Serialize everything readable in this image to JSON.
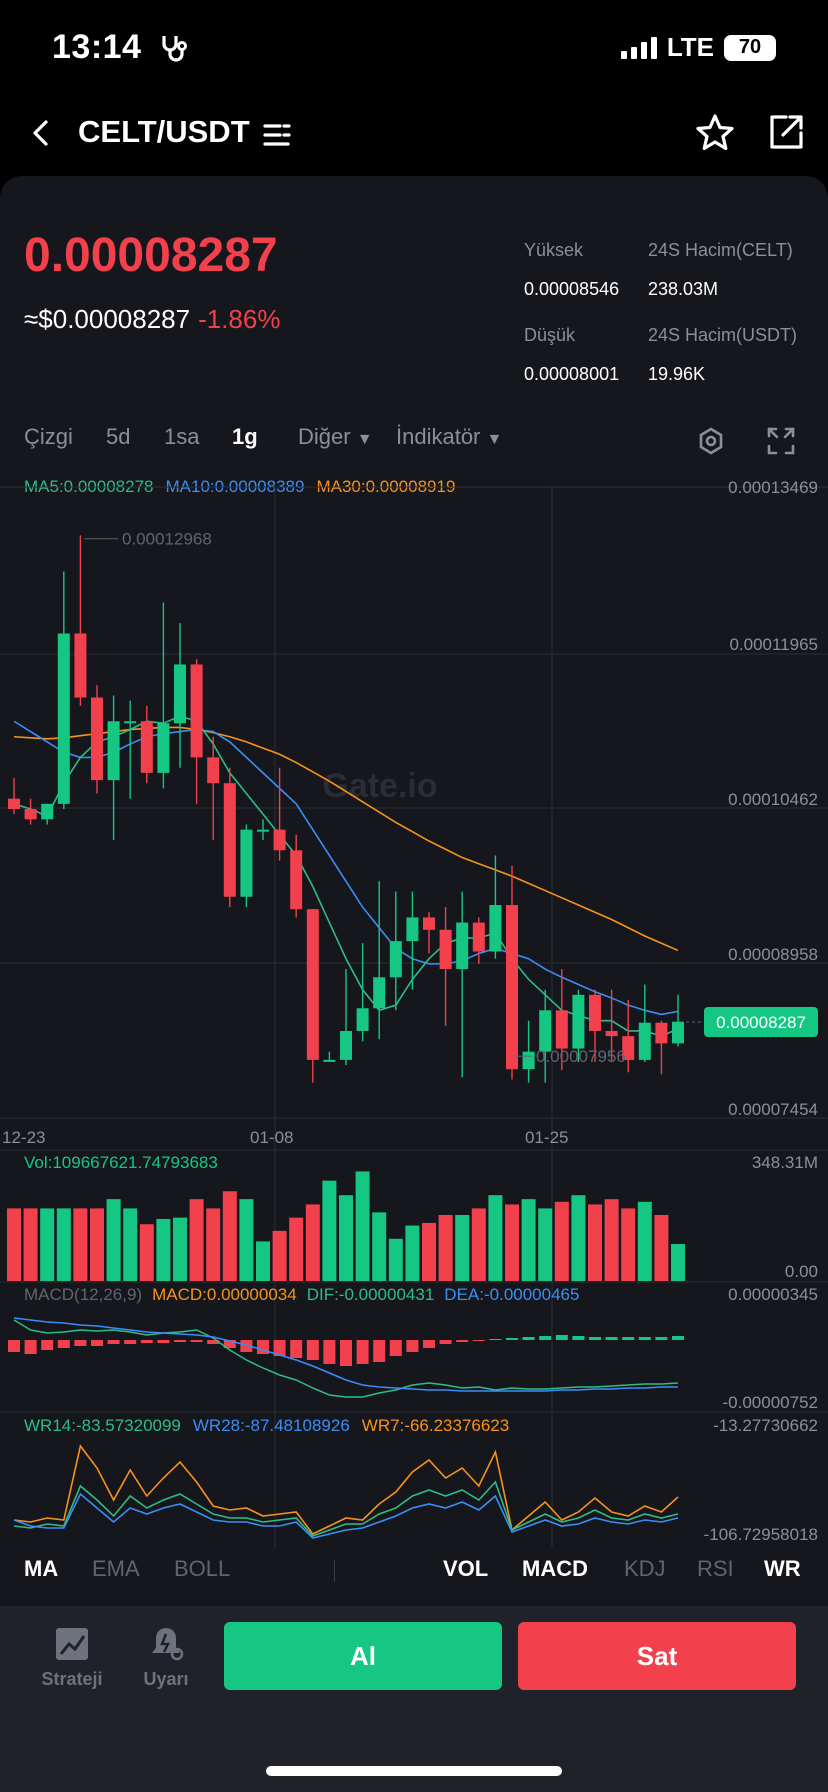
{
  "status": {
    "time": "13:14",
    "network": "LTE",
    "battery": "70"
  },
  "header": {
    "pair": "CELT/USDT"
  },
  "ticker": {
    "last_price": "0.00008287",
    "approx_usd": "≈$0.00008287",
    "change": "-1.86%",
    "high_label": "Yüksek",
    "high_value": "0.00008546",
    "low_label": "Düşük",
    "low_value": "0.00008001",
    "vol_base_label": "24S Hacim(CELT)",
    "vol_base_value": "238.03M",
    "vol_quote_label": "24S Hacim(USDT)",
    "vol_quote_value": "19.96K"
  },
  "tabs": {
    "items": [
      "Çizgi",
      "5d",
      "1sa",
      "1g",
      "Diğer",
      "İndikatör"
    ],
    "active": "1g"
  },
  "ma_legend": {
    "ma5": "MA5:0.00008278",
    "ma10": "MA10:0.00008389",
    "ma30": "MA30:0.00008919"
  },
  "colors": {
    "up": "#16c784",
    "down": "#f2404c",
    "ma5": "#2ebd85",
    "ma10": "#3a8ef6",
    "ma30": "#f7931a",
    "accent_bg": "#15171d"
  },
  "chart_data": {
    "type": "candlestick",
    "price_axis": [
      "0.00013469",
      "0.00011965",
      "0.00010462",
      "0.00008958",
      "0.00007454"
    ],
    "x_ticks": [
      "12-23",
      "01-08",
      "01-25"
    ],
    "high_marker": "0.00012968",
    "low_marker": "0.00007956",
    "current_price_tag": "0.00008287",
    "ylim": [
      7.454e-05,
      0.00013469
    ],
    "candles": [
      {
        "o": 0.0001045,
        "h": 0.0001065,
        "l": 0.000103,
        "c": 0.0001035
      },
      {
        "o": 0.0001035,
        "h": 0.0001045,
        "l": 0.000102,
        "c": 0.0001025
      },
      {
        "o": 0.0001025,
        "h": 0.000104,
        "l": 0.000102,
        "c": 0.000104
      },
      {
        "o": 0.000104,
        "h": 0.0001265,
        "l": 0.0001035,
        "c": 0.0001205
      },
      {
        "o": 0.0001205,
        "h": 0.00013,
        "l": 0.0001135,
        "c": 0.0001143
      },
      {
        "o": 0.0001143,
        "h": 0.0001155,
        "l": 0.000105,
        "c": 0.0001063
      },
      {
        "o": 0.0001063,
        "h": 0.0001145,
        "l": 0.0001005,
        "c": 0.000112
      },
      {
        "o": 0.000112,
        "h": 0.000114,
        "l": 0.0001045,
        "c": 0.000112
      },
      {
        "o": 0.000112,
        "h": 0.0001135,
        "l": 0.000106,
        "c": 0.000107
      },
      {
        "o": 0.000107,
        "h": 0.0001235,
        "l": 0.0001055,
        "c": 0.0001118
      },
      {
        "o": 0.0001118,
        "h": 0.0001215,
        "l": 0.0001075,
        "c": 0.0001175
      },
      {
        "o": 0.0001175,
        "h": 0.000118,
        "l": 0.000104,
        "c": 0.0001085
      },
      {
        "o": 0.0001085,
        "h": 0.0001105,
        "l": 0.0001005,
        "c": 0.000106
      },
      {
        "o": 0.000106,
        "h": 0.0001075,
        "l": 9.4e-05,
        "c": 9.5e-05
      },
      {
        "o": 9.5e-05,
        "h": 0.000102,
        "l": 9.4e-05,
        "c": 0.0001015
      },
      {
        "o": 0.0001015,
        "h": 0.0001025,
        "l": 0.0001005,
        "c": 0.0001015
      },
      {
        "o": 0.0001015,
        "h": 0.0001075,
        "l": 9.85e-05,
        "c": 9.95e-05
      },
      {
        "o": 9.95e-05,
        "h": 0.000101,
        "l": 9.3e-05,
        "c": 9.38e-05
      },
      {
        "o": 9.38e-05,
        "h": 9.38e-05,
        "l": 7.7e-05,
        "c": 7.92e-05
      },
      {
        "o": 7.92e-05,
        "h": 8e-05,
        "l": 7.9e-05,
        "c": 7.92e-05
      },
      {
        "o": 7.92e-05,
        "h": 8.8e-05,
        "l": 7.87e-05,
        "c": 8.2e-05
      },
      {
        "o": 8.2e-05,
        "h": 9.05e-05,
        "l": 8.1e-05,
        "c": 8.42e-05
      },
      {
        "o": 8.42e-05,
        "h": 9.65e-05,
        "l": 8.12e-05,
        "c": 8.72e-05
      },
      {
        "o": 8.72e-05,
        "h": 9.55e-05,
        "l": 8.4e-05,
        "c": 9.07e-05
      },
      {
        "o": 9.07e-05,
        "h": 9.55e-05,
        "l": 8.6e-05,
        "c": 9.3e-05
      },
      {
        "o": 9.3e-05,
        "h": 9.35e-05,
        "l": 8.95e-05,
        "c": 9.18e-05
      },
      {
        "o": 9.18e-05,
        "h": 9.4e-05,
        "l": 8.25e-05,
        "c": 8.8e-05
      },
      {
        "o": 8.8e-05,
        "h": 9.55e-05,
        "l": 7.75e-05,
        "c": 9.25e-05
      },
      {
        "o": 9.25e-05,
        "h": 9.3e-05,
        "l": 8.85e-05,
        "c": 8.97e-05
      },
      {
        "o": 8.97e-05,
        "h": 9.9e-05,
        "l": 8.9e-05,
        "c": 9.42e-05
      },
      {
        "o": 9.42e-05,
        "h": 9.8e-05,
        "l": 7.73e-05,
        "c": 7.83e-05
      },
      {
        "o": 7.83e-05,
        "h": 8.3e-05,
        "l": 7.7e-05,
        "c": 8e-05
      },
      {
        "o": 8e-05,
        "h": 8.6e-05,
        "l": 7.7e-05,
        "c": 8.4e-05
      },
      {
        "o": 8.4e-05,
        "h": 8.8e-05,
        "l": 7.82e-05,
        "c": 8.03e-05
      },
      {
        "o": 8.03e-05,
        "h": 8.6e-05,
        "l": 7.9e-05,
        "c": 8.55e-05
      },
      {
        "o": 8.55e-05,
        "h": 8.6e-05,
        "l": 7.9e-05,
        "c": 8.2e-05
      },
      {
        "o": 8.2e-05,
        "h": 8.6e-05,
        "l": 7.9e-05,
        "c": 8.15e-05
      },
      {
        "o": 8.15e-05,
        "h": 8.5e-05,
        "l": 7.8e-05,
        "c": 7.92e-05
      },
      {
        "o": 7.92e-05,
        "h": 8.65e-05,
        "l": 7.9e-05,
        "c": 8.28e-05
      },
      {
        "o": 8.28e-05,
        "h": 8.3e-05,
        "l": 7.78e-05,
        "c": 8.08e-05
      },
      {
        "o": 8.08e-05,
        "h": 8.55e-05,
        "l": 8.05e-05,
        "c": 8.29e-05
      }
    ],
    "ma5_series": [
      0.000104,
      0.0001035,
      0.0001028,
      0.000106,
      0.0001085,
      0.00011,
      0.0001105,
      0.0001112,
      0.000112,
      0.0001118,
      0.0001125,
      0.000112,
      0.0001098,
      0.000107,
      0.000105,
      0.000103,
      0.000101,
      9.9e-05,
      9.6e-05,
      9.25e-05,
      8.9e-05,
      8.6e-05,
      8.4e-05,
      8.45e-05,
      8.7e-05,
      8.9e-05,
      9.05e-05,
      9.1e-05,
      9.1e-05,
      9.15e-05,
      8.9e-05,
      8.7e-05,
      8.55e-05,
      8.4e-05,
      8.35e-05,
      8.3e-05,
      8.3e-05,
      8.2e-05,
      8.2e-05,
      8.15e-05,
      8.22e-05
    ],
    "ma10_series": [
      0.000112,
      0.000111,
      0.00011,
      0.000109,
      0.0001085,
      0.0001085,
      0.000109,
      0.0001098,
      0.0001105,
      0.0001108,
      0.000111,
      0.0001112,
      0.000111,
      0.00011,
      0.0001085,
      0.000107,
      0.0001055,
      0.000104,
      0.0001015,
      9.9e-05,
      9.65e-05,
      9.4e-05,
      9.2e-05,
      9e-05,
      8.9e-05,
      8.85e-05,
      8.85e-05,
      8.88e-05,
      8.95e-05,
      9e-05,
      8.95e-05,
      8.9e-05,
      8.8e-05,
      8.72e-05,
      8.65e-05,
      8.58e-05,
      8.52e-05,
      8.45e-05,
      8.4e-05,
      8.36e-05,
      8.39e-05
    ],
    "ma30_series": [
      0.0001105,
      0.0001104,
      0.0001103,
      0.0001104,
      0.0001106,
      0.0001108,
      0.000111,
      0.0001112,
      0.0001113,
      0.0001114,
      0.0001114,
      0.0001112,
      0.0001109,
      0.0001105,
      0.00011,
      0.0001094,
      0.0001088,
      0.000108,
      0.0001071,
      0.0001062,
      0.0001052,
      0.0001042,
      0.0001032,
      0.0001022,
      0.0001013,
      0.0001004,
      9.96e-05,
      9.88e-05,
      9.82e-05,
      9.76e-05,
      9.7e-05,
      9.63e-05,
      9.56e-05,
      9.49e-05,
      9.42e-05,
      9.35e-05,
      9.28e-05,
      9.2e-05,
      9.12e-05,
      9.05e-05,
      8.98e-05
    ]
  },
  "volume": {
    "label": "Vol:109667621.74793683",
    "axis_top": "348.31M",
    "axis_bottom": "0.00",
    "values": [
      0.55,
      0.55,
      0.55,
      0.55,
      0.55,
      0.55,
      0.62,
      0.55,
      0.43,
      0.47,
      0.48,
      0.62,
      0.55,
      0.68,
      0.62,
      0.3,
      0.38,
      0.48,
      0.58,
      0.76,
      0.65,
      0.83,
      0.52,
      0.32,
      0.42,
      0.44,
      0.5,
      0.5,
      0.55,
      0.65,
      0.58,
      0.62,
      0.55,
      0.6,
      0.65,
      0.58,
      0.62,
      0.55,
      0.6,
      0.5,
      0.28
    ]
  },
  "macd": {
    "label_params": "MACD(12,26,9)",
    "macd_value": "MACD:0.00000034",
    "dif": "DIF:-0.00000431",
    "dea": "DEA:-0.00000465",
    "axis_top": "0.00000345",
    "axis_bottom": "-0.00000752"
  },
  "wr": {
    "wr14": "WR14:-83.57320099",
    "wr28": "WR28:-87.48108926",
    "wr7": "WR7:-66.23376623",
    "axis_top": "-13.27730662",
    "axis_bottom": "-106.72958018"
  },
  "indicator_tabs": {
    "main": [
      "MA",
      "EMA",
      "BOLL"
    ],
    "sub": [
      "VOL",
      "MACD",
      "KDJ",
      "RSI",
      "WR"
    ]
  },
  "footer": {
    "strategy": "Strateji",
    "alert": "Uyarı",
    "buy": "Al",
    "sell": "Sat"
  },
  "watermark": "Gate.io"
}
